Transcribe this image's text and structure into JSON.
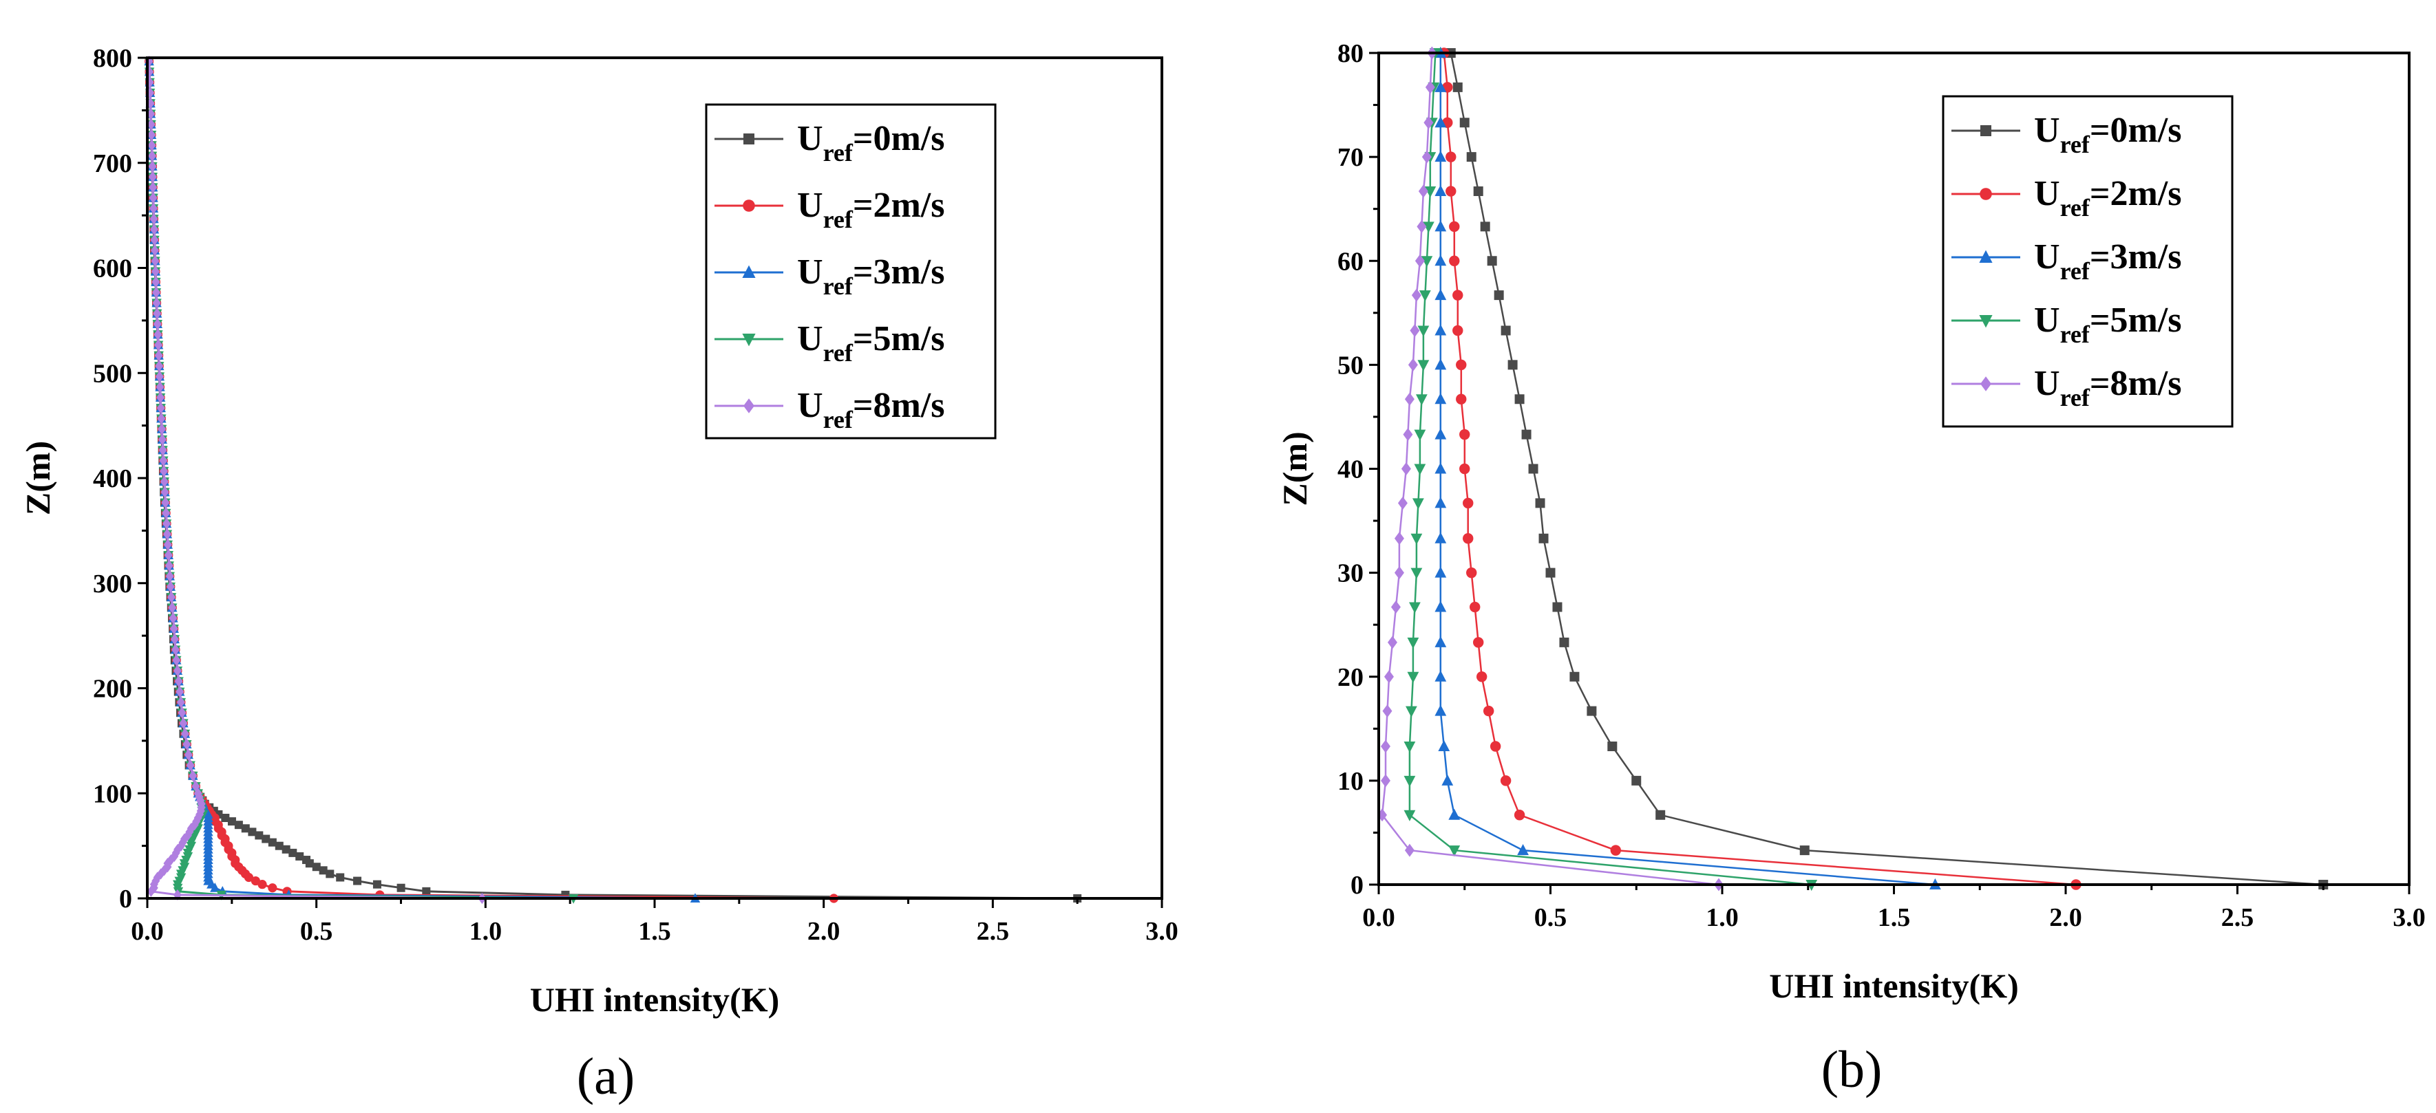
{
  "series_styles": [
    {
      "name_main": "U",
      "name_sub": "ref",
      "name_rest": "=0m/s",
      "color": "#4a4a4a",
      "marker": "square"
    },
    {
      "name_main": "U",
      "name_sub": "ref",
      "name_rest": "=2m/s",
      "color": "#e8303a",
      "marker": "circle"
    },
    {
      "name_main": "U",
      "name_sub": "ref",
      "name_rest": "=3m/s",
      "color": "#1f6fd1",
      "marker": "triangle-up"
    },
    {
      "name_main": "U",
      "name_sub": "ref",
      "name_rest": "=5m/s",
      "color": "#2ea36a",
      "marker": "triangle-down"
    },
    {
      "name_main": "U",
      "name_sub": "ref",
      "name_rest": "=8m/s",
      "color": "#b07fe0",
      "marker": "diamond"
    }
  ],
  "chart_data": [
    {
      "type": "line",
      "panel_label": "(a)",
      "xlabel": "UHI intensity(K)",
      "ylabel": "Z(m)",
      "xlim": [
        0.0,
        3.0
      ],
      "ylim": [
        0,
        800
      ],
      "xticks": [
        "0.0",
        "0.5",
        "1.0",
        "1.5",
        "2.0",
        "2.5",
        "3.0"
      ],
      "yticks": [
        "0",
        "100",
        "200",
        "300",
        "400",
        "500",
        "600",
        "700",
        "800"
      ],
      "legend_position": "top-right",
      "series": [
        {
          "name": "U_ref=0m/s",
          "profile": {
            "z": [
              0,
              3.3,
              6.7,
              10,
              13.3,
              16.7,
              20,
              23.3,
              26.7,
              30,
              33.3,
              36.7,
              40,
              43.3,
              46.7,
              50,
              53.3,
              56.7,
              60,
              63.3,
              66.7,
              70,
              73.3,
              76.7,
              80,
              85,
              90,
              100,
              110,
              130,
              150,
              170,
              200,
              230,
              260,
              300,
              340,
              380,
              420,
              460,
              500,
              540,
              580,
              620,
              660,
              700,
              740,
              780,
              800
            ],
            "x": [
              2.75,
              1.24,
              0.82,
              0.75,
              0.68,
              0.62,
              0.57,
              0.54,
              0.52,
              0.5,
              0.48,
              0.47,
              0.45,
              0.43,
              0.41,
              0.39,
              0.37,
              0.35,
              0.33,
              0.31,
              0.29,
              0.27,
              0.25,
              0.23,
              0.21,
              0.19,
              0.17,
              0.15,
              0.14,
              0.12,
              0.11,
              0.1,
              0.09,
              0.08,
              0.075,
              0.065,
              0.058,
              0.05,
              0.045,
              0.04,
              0.035,
              0.03,
              0.025,
              0.02,
              0.017,
              0.014,
              0.01,
              0.006,
              0.005
            ]
          }
        },
        {
          "name": "U_ref=2m/s",
          "profile": {
            "z": [
              0,
              3.3,
              6.7,
              10,
              13.3,
              16.7,
              20,
              23.3,
              26.7,
              30,
              33.3,
              36.7,
              40,
              43.3,
              46.7,
              50,
              53.3,
              56.7,
              60,
              63.3,
              66.7,
              70,
              73.3,
              76.7,
              80,
              85,
              90,
              100,
              110,
              130,
              150,
              170,
              200,
              230,
              260,
              300,
              340,
              380,
              420,
              460,
              500,
              540,
              580,
              620,
              660,
              700,
              740,
              780,
              800
            ],
            "x": [
              2.03,
              0.69,
              0.41,
              0.37,
              0.34,
              0.32,
              0.3,
              0.29,
              0.28,
              0.27,
              0.26,
              0.26,
              0.25,
              0.25,
              0.24,
              0.24,
              0.23,
              0.23,
              0.22,
              0.22,
              0.21,
              0.21,
              0.2,
              0.2,
              0.19,
              0.18,
              0.17,
              0.15,
              0.14,
              0.125,
              0.115,
              0.105,
              0.095,
              0.085,
              0.078,
              0.068,
              0.06,
              0.053,
              0.047,
              0.041,
              0.036,
              0.031,
              0.026,
              0.022,
              0.018,
              0.015,
              0.011,
              0.007,
              0.005
            ]
          }
        },
        {
          "name": "U_ref=3m/s",
          "profile": {
            "z": [
              0,
              3.3,
              6.7,
              10,
              13.3,
              16.7,
              20,
              23.3,
              26.7,
              30,
              33.3,
              36.7,
              40,
              43.3,
              46.7,
              50,
              53.3,
              56.7,
              60,
              63.3,
              66.7,
              70,
              73.3,
              76.7,
              80,
              85,
              90,
              100,
              110,
              130,
              150,
              170,
              200,
              230,
              260,
              300,
              340,
              380,
              420,
              460,
              500,
              540,
              580,
              620,
              660,
              700,
              740,
              780,
              800
            ],
            "x": [
              1.62,
              0.42,
              0.22,
              0.2,
              0.19,
              0.18,
              0.18,
              0.18,
              0.18,
              0.18,
              0.18,
              0.18,
              0.18,
              0.18,
              0.18,
              0.18,
              0.18,
              0.18,
              0.18,
              0.18,
              0.18,
              0.18,
              0.18,
              0.18,
              0.18,
              0.17,
              0.165,
              0.15,
              0.14,
              0.125,
              0.115,
              0.105,
              0.095,
              0.085,
              0.078,
              0.068,
              0.06,
              0.053,
              0.047,
              0.041,
              0.036,
              0.031,
              0.026,
              0.022,
              0.018,
              0.015,
              0.011,
              0.007,
              0.005
            ]
          }
        },
        {
          "name": "U_ref=5m/s",
          "profile": {
            "z": [
              0,
              3.3,
              6.7,
              10,
              13.3,
              16.7,
              20,
              23.3,
              26.7,
              30,
              33.3,
              36.7,
              40,
              43.3,
              46.7,
              50,
              53.3,
              56.7,
              60,
              63.3,
              66.7,
              70,
              73.3,
              76.7,
              80,
              85,
              90,
              100,
              110,
              130,
              150,
              170,
              200,
              230,
              260,
              300,
              340,
              380,
              420,
              460,
              500,
              540,
              580,
              620,
              660,
              700,
              740,
              780,
              800
            ],
            "x": [
              1.26,
              0.22,
              0.09,
              0.09,
              0.09,
              0.095,
              0.1,
              0.1,
              0.105,
              0.11,
              0.11,
              0.115,
              0.12,
              0.12,
              0.125,
              0.13,
              0.13,
              0.135,
              0.14,
              0.145,
              0.15,
              0.15,
              0.155,
              0.16,
              0.165,
              0.16,
              0.16,
              0.15,
              0.14,
              0.125,
              0.115,
              0.105,
              0.095,
              0.085,
              0.078,
              0.068,
              0.06,
              0.053,
              0.047,
              0.041,
              0.036,
              0.031,
              0.026,
              0.022,
              0.018,
              0.015,
              0.011,
              0.007,
              0.005
            ]
          }
        },
        {
          "name": "U_ref=8m/s",
          "profile": {
            "z": [
              0,
              3.3,
              6.7,
              10,
              13.3,
              16.7,
              20,
              23.3,
              26.7,
              30,
              33.3,
              36.7,
              40,
              43.3,
              46.7,
              50,
              53.3,
              56.7,
              60,
              63.3,
              66.7,
              70,
              73.3,
              76.7,
              80,
              85,
              90,
              100,
              110,
              130,
              150,
              170,
              200,
              230,
              260,
              300,
              340,
              380,
              420,
              460,
              500,
              540,
              580,
              620,
              660,
              700,
              740,
              780,
              800
            ],
            "x": [
              0.99,
              0.09,
              0.01,
              0.02,
              0.02,
              0.025,
              0.03,
              0.04,
              0.05,
              0.06,
              0.06,
              0.07,
              0.08,
              0.085,
              0.09,
              0.1,
              0.105,
              0.11,
              0.12,
              0.125,
              0.13,
              0.14,
              0.145,
              0.15,
              0.155,
              0.16,
              0.16,
              0.15,
              0.14,
              0.125,
              0.115,
              0.105,
              0.095,
              0.085,
              0.078,
              0.068,
              0.06,
              0.053,
              0.047,
              0.041,
              0.036,
              0.031,
              0.026,
              0.022,
              0.018,
              0.015,
              0.011,
              0.007,
              0.005
            ]
          }
        }
      ]
    },
    {
      "type": "line",
      "panel_label": "(b)",
      "xlabel": "UHI intensity(K)",
      "ylabel": "Z(m)",
      "xlim": [
        0.0,
        3.0
      ],
      "ylim": [
        0,
        80
      ],
      "xticks": [
        "0.0",
        "0.5",
        "1.0",
        "1.5",
        "2.0",
        "2.5",
        "3.0"
      ],
      "yticks": [
        "0",
        "10",
        "20",
        "30",
        "40",
        "50",
        "60",
        "70",
        "80"
      ],
      "legend_position": "top-right",
      "series": [
        {
          "name": "U_ref=0m/s",
          "z": [
            0,
            3.3,
            6.7,
            10,
            13.3,
            16.7,
            20,
            23.3,
            26.7,
            30,
            33.3,
            36.7,
            40,
            43.3,
            46.7,
            50,
            53.3,
            56.7,
            60,
            63.3,
            66.7,
            70,
            73.3,
            76.7,
            80
          ],
          "x": [
            2.75,
            1.24,
            0.82,
            0.75,
            0.68,
            0.62,
            0.57,
            0.54,
            0.52,
            0.5,
            0.48,
            0.47,
            0.45,
            0.43,
            0.41,
            0.39,
            0.37,
            0.35,
            0.33,
            0.31,
            0.29,
            0.27,
            0.25,
            0.23,
            0.21
          ]
        },
        {
          "name": "U_ref=2m/s",
          "z": [
            0,
            3.3,
            6.7,
            10,
            13.3,
            16.7,
            20,
            23.3,
            26.7,
            30,
            33.3,
            36.7,
            40,
            43.3,
            46.7,
            50,
            53.3,
            56.7,
            60,
            63.3,
            66.7,
            70,
            73.3,
            76.7,
            80
          ],
          "x": [
            2.03,
            0.69,
            0.41,
            0.37,
            0.34,
            0.32,
            0.3,
            0.29,
            0.28,
            0.27,
            0.26,
            0.26,
            0.25,
            0.25,
            0.24,
            0.24,
            0.23,
            0.23,
            0.22,
            0.22,
            0.21,
            0.21,
            0.2,
            0.2,
            0.19
          ]
        },
        {
          "name": "U_ref=3m/s",
          "z": [
            0,
            3.3,
            6.7,
            10,
            13.3,
            16.7,
            20,
            23.3,
            26.7,
            30,
            33.3,
            36.7,
            40,
            43.3,
            46.7,
            50,
            53.3,
            56.7,
            60,
            63.3,
            66.7,
            70,
            73.3,
            76.7,
            80
          ],
          "x": [
            1.62,
            0.42,
            0.22,
            0.2,
            0.19,
            0.18,
            0.18,
            0.18,
            0.18,
            0.18,
            0.18,
            0.18,
            0.18,
            0.18,
            0.18,
            0.18,
            0.18,
            0.18,
            0.18,
            0.18,
            0.18,
            0.18,
            0.18,
            0.18,
            0.18
          ]
        },
        {
          "name": "U_ref=5m/s",
          "z": [
            0,
            3.3,
            6.7,
            10,
            13.3,
            16.7,
            20,
            23.3,
            26.7,
            30,
            33.3,
            36.7,
            40,
            43.3,
            46.7,
            50,
            53.3,
            56.7,
            60,
            63.3,
            66.7,
            70,
            73.3,
            76.7,
            80
          ],
          "x": [
            1.26,
            0.22,
            0.09,
            0.09,
            0.09,
            0.095,
            0.1,
            0.1,
            0.105,
            0.11,
            0.11,
            0.115,
            0.12,
            0.12,
            0.125,
            0.13,
            0.13,
            0.135,
            0.14,
            0.145,
            0.15,
            0.15,
            0.155,
            0.16,
            0.165
          ]
        },
        {
          "name": "U_ref=8m/s",
          "z": [
            0,
            3.3,
            6.7,
            10,
            13.3,
            16.7,
            20,
            23.3,
            26.7,
            30,
            33.3,
            36.7,
            40,
            43.3,
            46.7,
            50,
            53.3,
            56.7,
            60,
            63.3,
            66.7,
            70,
            73.3,
            76.7,
            80
          ],
          "x": [
            0.99,
            0.09,
            0.01,
            0.02,
            0.02,
            0.025,
            0.03,
            0.04,
            0.05,
            0.06,
            0.06,
            0.07,
            0.08,
            0.085,
            0.09,
            0.1,
            0.105,
            0.11,
            0.12,
            0.125,
            0.13,
            0.14,
            0.145,
            0.15,
            0.155
          ]
        }
      ]
    }
  ]
}
